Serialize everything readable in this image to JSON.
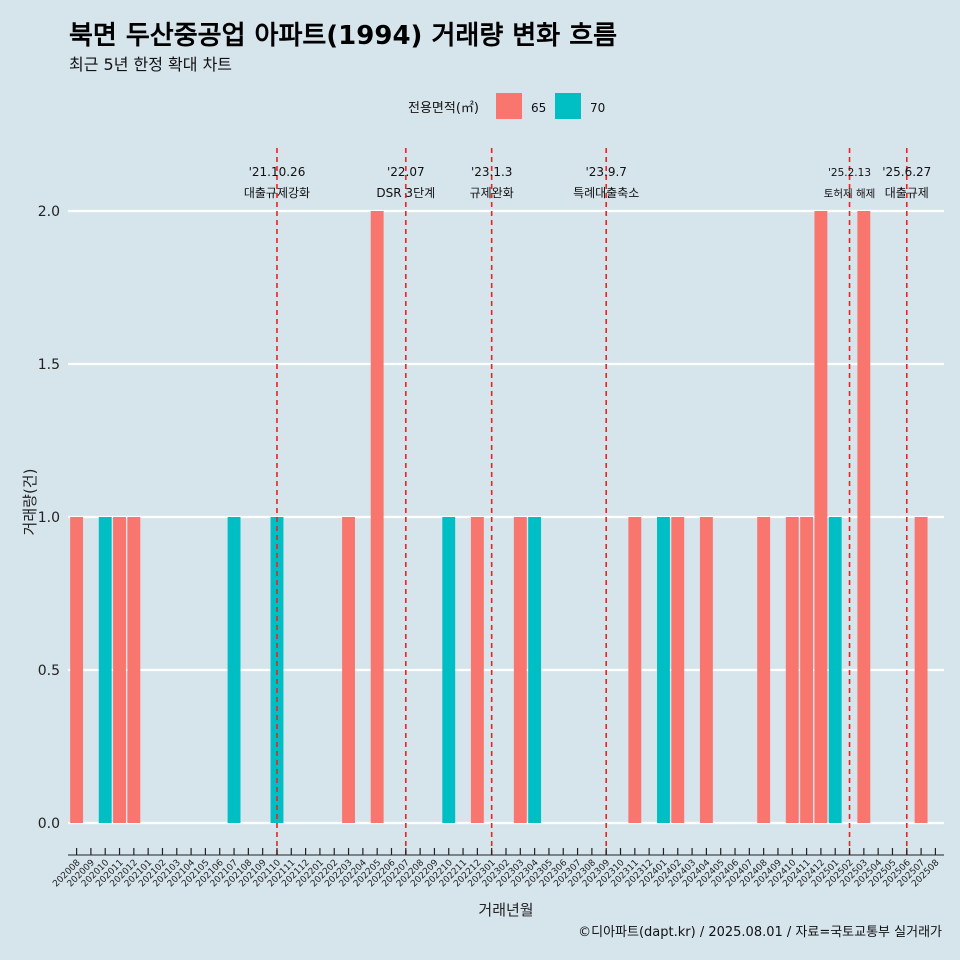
{
  "chart_data": {
    "type": "bar",
    "title": "북면 두산중공업 아파트(1994) 거래량 변화 흐름",
    "subtitle": "최근 5년 한정 확대 차트",
    "xlabel": "거래년월",
    "ylabel": "거래량(건)",
    "ylim": [
      0,
      2
    ],
    "yticks": [
      "0.0",
      "0.5",
      "1.0",
      "1.5",
      "2.0"
    ],
    "legend": {
      "title": "전용면적(㎡)",
      "placement": "top",
      "entries": [
        {
          "name": "65",
          "color": "#f8766d"
        },
        {
          "name": "70",
          "color": "#00bfc4"
        }
      ]
    },
    "categories": [
      "202008",
      "202009",
      "202010",
      "202011",
      "202012",
      "202101",
      "202102",
      "202103",
      "202104",
      "202105",
      "202106",
      "202107",
      "202108",
      "202109",
      "202110",
      "202111",
      "202112",
      "202201",
      "202202",
      "202203",
      "202204",
      "202205",
      "202206",
      "202207",
      "202208",
      "202209",
      "202210",
      "202211",
      "202212",
      "202301",
      "202302",
      "202303",
      "202304",
      "202305",
      "202306",
      "202307",
      "202308",
      "202309",
      "202310",
      "202311",
      "202312",
      "202401",
      "202402",
      "202403",
      "202404",
      "202405",
      "202406",
      "202407",
      "202408",
      "202409",
      "202410",
      "202411",
      "202412",
      "202501",
      "202502",
      "202503",
      "202504",
      "202505",
      "202506",
      "202507",
      "202508"
    ],
    "series": [
      {
        "name": "65",
        "color": "#f8766d",
        "points": [
          {
            "x": "202008",
            "y": 1
          },
          {
            "x": "202011",
            "y": 1
          },
          {
            "x": "202012",
            "y": 1
          },
          {
            "x": "202203",
            "y": 1
          },
          {
            "x": "202205",
            "y": 2
          },
          {
            "x": "202212",
            "y": 1
          },
          {
            "x": "202303",
            "y": 1
          },
          {
            "x": "202311",
            "y": 1
          },
          {
            "x": "202402",
            "y": 1
          },
          {
            "x": "202404",
            "y": 1
          },
          {
            "x": "202408",
            "y": 1
          },
          {
            "x": "202410",
            "y": 1
          },
          {
            "x": "202411",
            "y": 1
          },
          {
            "x": "202412",
            "y": 2
          },
          {
            "x": "202503",
            "y": 2
          },
          {
            "x": "202507",
            "y": 1
          }
        ]
      },
      {
        "name": "70",
        "color": "#00bfc4",
        "points": [
          {
            "x": "202010",
            "y": 1
          },
          {
            "x": "202107",
            "y": 1
          },
          {
            "x": "202110",
            "y": 1
          },
          {
            "x": "202210",
            "y": 1
          },
          {
            "x": "202304",
            "y": 1
          },
          {
            "x": "202401",
            "y": 1
          },
          {
            "x": "202501",
            "y": 1
          }
        ]
      }
    ],
    "events": [
      {
        "date": "'21.10.26",
        "label": "대출규제강화",
        "x": "202110",
        "small": false
      },
      {
        "date": "'22.07",
        "label": "DSR 3단계",
        "x": "202207",
        "small": false
      },
      {
        "date": "'23.1.3",
        "label": "규제완화",
        "x": "202301",
        "small": false
      },
      {
        "date": "'23.9.7",
        "label": "특례대출축소",
        "x": "202309",
        "small": false
      },
      {
        "date": "'25.2.13",
        "label": "토허제 해제",
        "x": "202502",
        "small": true
      },
      {
        "date": "'25.6.27",
        "label": "대출규제",
        "x": "202506",
        "small": false
      }
    ],
    "grid": true,
    "event_line_color": "#e8251e"
  },
  "caption": "©디아파트(dapt.kr) / 2025.08.01 / 자료=국토교통부 실거래가"
}
